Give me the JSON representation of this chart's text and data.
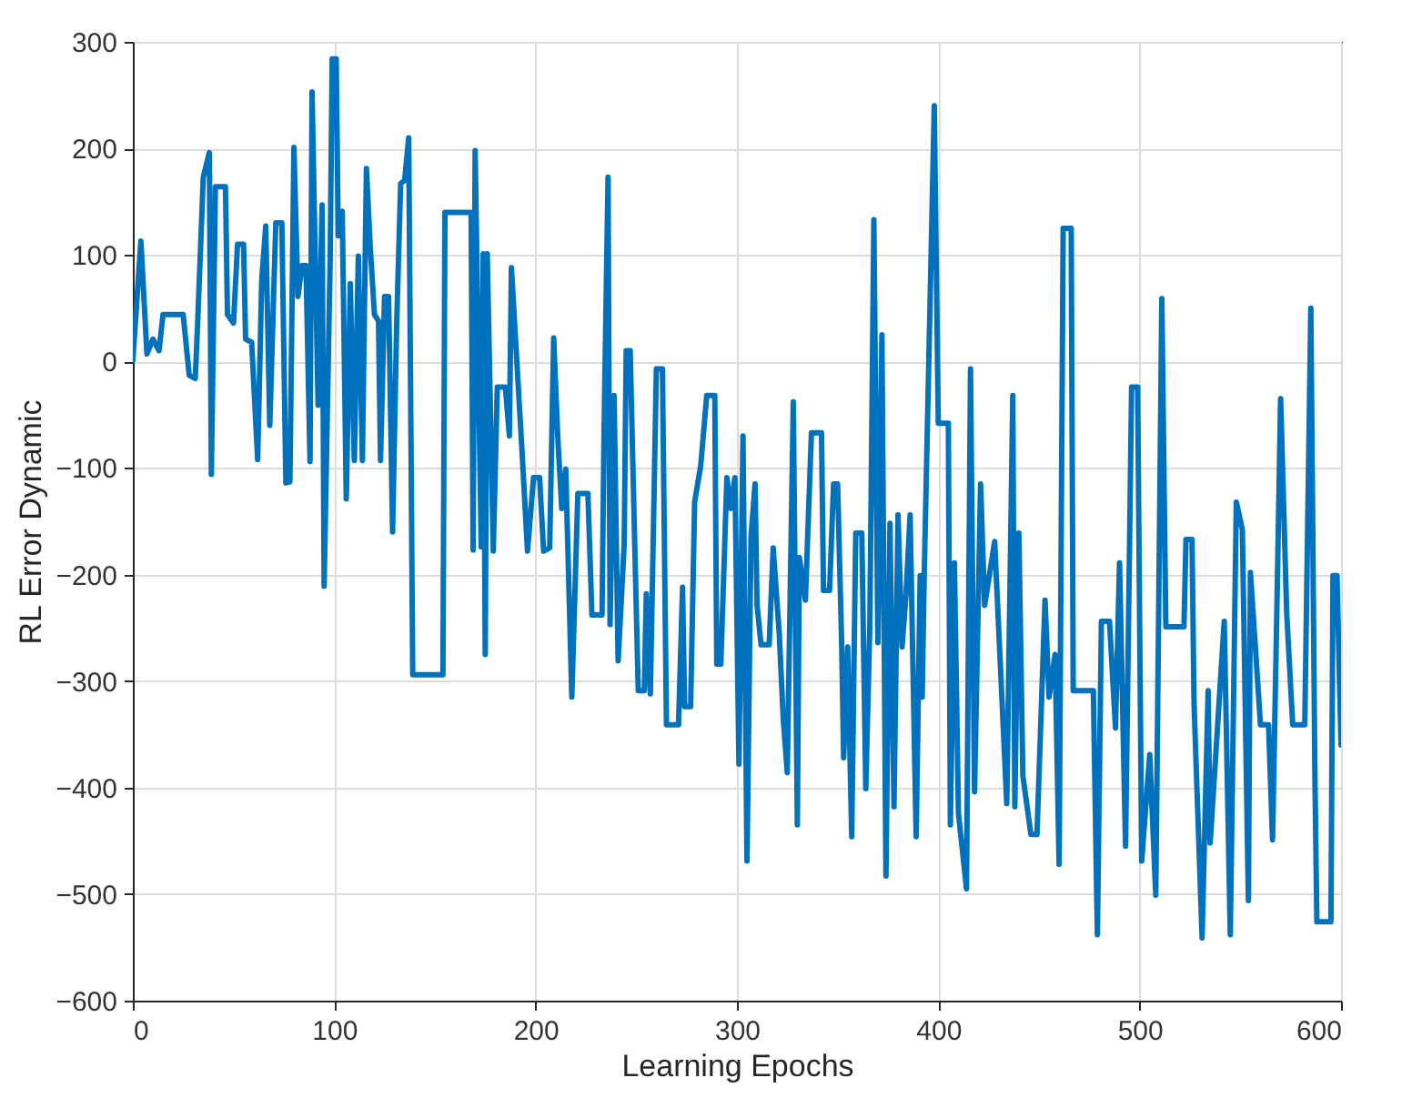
{
  "chart_data": {
    "type": "line",
    "xlabel": "Learning Epochs",
    "ylabel": "RL Error Dynamic",
    "xlim": [
      0,
      600
    ],
    "ylim": [
      -600,
      300
    ],
    "xticks": [
      0,
      100,
      200,
      300,
      400,
      500,
      600
    ],
    "yticks": [
      -600,
      -500,
      -400,
      -300,
      -200,
      -100,
      0,
      100,
      200,
      300
    ],
    "grid": true,
    "x": [
      0,
      4,
      7,
      10,
      13,
      15,
      25,
      28,
      31,
      32,
      35,
      38,
      39,
      41,
      46,
      47,
      50,
      52,
      55,
      56,
      59,
      62,
      64,
      66,
      68,
      71,
      74,
      76,
      78,
      80,
      82,
      84,
      86,
      88,
      89,
      92,
      94,
      95,
      98,
      99,
      101,
      102,
      104,
      106,
      108,
      110,
      112,
      114,
      116,
      118,
      120,
      122,
      123,
      125,
      127,
      129,
      131,
      133,
      135,
      137,
      139,
      154,
      155,
      168,
      169,
      170,
      173,
      174,
      175,
      176,
      179,
      181,
      185,
      187,
      188,
      193,
      196,
      199,
      202,
      204,
      207,
      209,
      211,
      213,
      215,
      218,
      221,
      226,
      228,
      233,
      234,
      236,
      237,
      239,
      241,
      244,
      245,
      247,
      249,
      251,
      254,
      255,
      257,
      260,
      263,
      265,
      271,
      273,
      274,
      277,
      279,
      282,
      285,
      289,
      290,
      292,
      295,
      297,
      299,
      301,
      303,
      305,
      307,
      309,
      310,
      312,
      316,
      318,
      321,
      323,
      325,
      328,
      330,
      331,
      334,
      337,
      342,
      343,
      346,
      348,
      350,
      352,
      353,
      355,
      357,
      359,
      362,
      364,
      366,
      368,
      370,
      372,
      374,
      376,
      378,
      380,
      382,
      384,
      386,
      389,
      391,
      392,
      393,
      398,
      400,
      405,
      406,
      408,
      410,
      414,
      416,
      418,
      421,
      423,
      428,
      431,
      434,
      437,
      438,
      440,
      442,
      446,
      449,
      453,
      455,
      458,
      460,
      462,
      466,
      467,
      477,
      479,
      481,
      485,
      488,
      490,
      493,
      496,
      499,
      501,
      505,
      508,
      511,
      513,
      522,
      523,
      526,
      527,
      531,
      534,
      535,
      542,
      545,
      548,
      551,
      554,
      555,
      560,
      564,
      566,
      568,
      570,
      573,
      576,
      582,
      585,
      587,
      588,
      595,
      596,
      598,
      600
    ],
    "series": [
      {
        "color": "#0072bd",
        "values": [
          1,
          113,
          7,
          21,
          10,
          44,
          44,
          -13,
          -16,
          27,
          173,
          196,
          -106,
          164,
          164,
          44,
          36,
          110,
          110,
          21,
          18,
          -92,
          76,
          127,
          -60,
          130,
          130,
          -114,
          -113,
          201,
          61,
          90,
          90,
          -94,
          253,
          -41,
          147,
          -211,
          96,
          284,
          284,
          118,
          141,
          -129,
          73,
          -93,
          99,
          -93,
          181,
          104,
          44,
          38,
          -93,
          61,
          61,
          -160,
          33,
          167,
          170,
          210,
          -294,
          -294,
          140,
          140,
          -177,
          198,
          -174,
          101,
          -275,
          101,
          -178,
          -24,
          -24,
          -70,
          88,
          -75,
          -178,
          -109,
          -109,
          -178,
          -175,
          22,
          -70,
          -138,
          -101,
          -315,
          -124,
          -124,
          -238,
          -238,
          -67,
          173,
          -247,
          -32,
          -281,
          -172,
          10,
          10,
          -152,
          -309,
          -309,
          -218,
          -312,
          -7,
          -7,
          -341,
          -341,
          -212,
          -324,
          -324,
          -132,
          -98,
          -32,
          -32,
          -284,
          -284,
          -109,
          -138,
          -109,
          -378,
          -70,
          -469,
          -164,
          -115,
          -229,
          -266,
          -266,
          -175,
          -255,
          -335,
          -386,
          -38,
          -435,
          -184,
          -224,
          -67,
          -67,
          -215,
          -215,
          -115,
          -115,
          -264,
          -372,
          -268,
          -446,
          -161,
          -161,
          -401,
          -247,
          133,
          -264,
          25,
          -483,
          -152,
          -418,
          -144,
          -268,
          -218,
          -144,
          -446,
          -201,
          -315,
          -201,
          240,
          -58,
          -58,
          -435,
          -189,
          -424,
          -495,
          -7,
          -404,
          -115,
          -229,
          -169,
          -292,
          -415,
          -32,
          -418,
          -161,
          -389,
          -444,
          -444,
          -224,
          -315,
          -275,
          -472,
          125,
          125,
          -309,
          -309,
          -538,
          -244,
          -244,
          -344,
          -189,
          -455,
          -24,
          -24,
          -469,
          -369,
          -501,
          59,
          -249,
          -249,
          -167,
          -167,
          -321,
          -541,
          -309,
          -452,
          -244,
          -538,
          -132,
          -158,
          -506,
          -198,
          -341,
          -341,
          -449,
          -247,
          -35,
          -235,
          -341,
          -341,
          50,
          -384,
          -526,
          -526,
          -201,
          -201,
          -360
        ]
      }
    ]
  }
}
